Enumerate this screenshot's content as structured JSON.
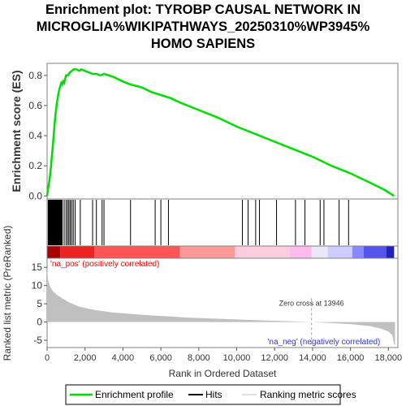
{
  "title_lines": [
    "Enrichment plot: TYROBP CAUSAL NETWORK IN",
    "MICROGLIA%WIKIPATHWAYS_20250310%WP3945%",
    "HOMO SAPIENS"
  ],
  "colors": {
    "es_line": "#00dd00",
    "hits": "#000000",
    "metric_fill": "#c0c0c0",
    "frame": "#808080",
    "pos_label": "#ff0000",
    "neg_label": "#3333cc",
    "zero_cross_line": "#a0a0a0"
  },
  "chart_data": {
    "type": "line",
    "x_axis": {
      "label": "Rank in Ordered Dataset",
      "range": [
        0,
        18500
      ],
      "ticks": [
        0,
        2000,
        4000,
        6000,
        8000,
        10000,
        12000,
        14000,
        16000,
        18000
      ],
      "tick_labels": [
        "0",
        "2,000",
        "4,000",
        "6,000",
        "8,000",
        "10,000",
        "12,000",
        "14,000",
        "16,000",
        "18,000"
      ]
    },
    "enrichment_panel": {
      "ylabel": "Enrichment score (ES)",
      "ylim": [
        -0.02,
        0.88
      ],
      "yticks": [
        0.0,
        0.2,
        0.4,
        0.6,
        0.8
      ],
      "ytick_labels": [
        "0.0",
        "0.2",
        "0.4",
        "0.6",
        "0.8"
      ],
      "series": [
        {
          "name": "Enrichment profile",
          "points": [
            [
              0,
              0.0
            ],
            [
              40,
              0.04
            ],
            [
              80,
              0.07
            ],
            [
              120,
              0.1
            ],
            [
              160,
              0.14
            ],
            [
              200,
              0.19
            ],
            [
              240,
              0.25
            ],
            [
              280,
              0.3
            ],
            [
              320,
              0.36
            ],
            [
              360,
              0.42
            ],
            [
              400,
              0.48
            ],
            [
              440,
              0.54
            ],
            [
              480,
              0.58
            ],
            [
              520,
              0.62
            ],
            [
              560,
              0.65
            ],
            [
              600,
              0.68
            ],
            [
              650,
              0.71
            ],
            [
              700,
              0.73
            ],
            [
              750,
              0.75
            ],
            [
              800,
              0.74
            ],
            [
              850,
              0.76
            ],
            [
              900,
              0.75
            ],
            [
              1000,
              0.8
            ],
            [
              1100,
              0.8
            ],
            [
              1200,
              0.82
            ],
            [
              1300,
              0.83
            ],
            [
              1400,
              0.84
            ],
            [
              1550,
              0.84
            ],
            [
              1700,
              0.83
            ],
            [
              1800,
              0.84
            ],
            [
              2000,
              0.83
            ],
            [
              2200,
              0.82
            ],
            [
              2400,
              0.81
            ],
            [
              2600,
              0.81
            ],
            [
              2800,
              0.8
            ],
            [
              3000,
              0.81
            ],
            [
              3500,
              0.79
            ],
            [
              4000,
              0.76
            ],
            [
              4400,
              0.74
            ],
            [
              5000,
              0.72
            ],
            [
              5500,
              0.69
            ],
            [
              6000,
              0.67
            ],
            [
              6500,
              0.65
            ],
            [
              7000,
              0.62
            ],
            [
              8000,
              0.57
            ],
            [
              9000,
              0.52
            ],
            [
              10000,
              0.46
            ],
            [
              11000,
              0.41
            ],
            [
              12000,
              0.36
            ],
            [
              13000,
              0.31
            ],
            [
              14000,
              0.26
            ],
            [
              15000,
              0.2
            ],
            [
              16000,
              0.15
            ],
            [
              17000,
              0.09
            ],
            [
              17800,
              0.04
            ],
            [
              18300,
              0.0
            ]
          ]
        }
      ]
    },
    "hits": [
      60,
      90,
      120,
      150,
      170,
      200,
      220,
      250,
      270,
      290,
      310,
      330,
      350,
      370,
      390,
      410,
      430,
      450,
      480,
      500,
      520,
      550,
      580,
      610,
      640,
      670,
      700,
      730,
      760,
      800,
      900,
      1000,
      1080,
      1150,
      1220,
      1300,
      1380,
      1480,
      1750,
      2400,
      2600,
      2900,
      3000,
      4400,
      5700,
      6000,
      6400,
      10300,
      10600,
      11000,
      11200,
      12100,
      13100,
      13600,
      14400,
      14600,
      15400,
      15900
    ],
    "ranking_color_bands": [
      {
        "from": 0,
        "to": 700,
        "color": "#aa0000"
      },
      {
        "from": 700,
        "to": 2500,
        "color": "#ee2222"
      },
      {
        "from": 2500,
        "to": 7000,
        "color": "#ff5555"
      },
      {
        "from": 7000,
        "to": 9900,
        "color": "#ff9999"
      },
      {
        "from": 9900,
        "to": 12800,
        "color": "#ffccdd"
      },
      {
        "from": 12800,
        "to": 13950,
        "color": "#ffbbee"
      },
      {
        "from": 13950,
        "to": 14800,
        "color": "#e8e8f8"
      },
      {
        "from": 14800,
        "to": 16100,
        "color": "#ccccff"
      },
      {
        "from": 16100,
        "to": 16700,
        "color": "#8888ff"
      },
      {
        "from": 16700,
        "to": 17900,
        "color": "#5555ee"
      },
      {
        "from": 17900,
        "to": 18300,
        "color": "#2222bb"
      }
    ],
    "metric_panel": {
      "ylabel": "Ranked list metric (PreRanked)",
      "ylim": [
        -7,
        17.5
      ],
      "yticks": [
        -5,
        0,
        5,
        10,
        15
      ],
      "ytick_labels": [
        "-5",
        "0",
        "5",
        "10",
        "15"
      ],
      "points": [
        [
          0,
          14.5
        ],
        [
          50,
          11.5
        ],
        [
          150,
          9.8
        ],
        [
          300,
          8.5
        ],
        [
          500,
          7.5
        ],
        [
          800,
          6.5
        ],
        [
          1200,
          5.3
        ],
        [
          1700,
          4.2
        ],
        [
          2500,
          3.3
        ],
        [
          3500,
          2.6
        ],
        [
          4500,
          2.2
        ],
        [
          5500,
          1.8
        ],
        [
          6500,
          1.5
        ],
        [
          7500,
          1.2
        ],
        [
          9000,
          0.9
        ],
        [
          10500,
          0.6
        ],
        [
          12000,
          0.35
        ],
        [
          13946,
          0.0
        ],
        [
          15000,
          -0.3
        ],
        [
          16000,
          -0.6
        ],
        [
          17000,
          -1.1
        ],
        [
          17600,
          -1.8
        ],
        [
          18000,
          -2.6
        ],
        [
          18200,
          -3.6
        ],
        [
          18300,
          -6.0
        ],
        [
          18350,
          -6.5
        ]
      ],
      "zero_cross": 13946,
      "zero_cross_label": "Zero cross at 13946",
      "pos_label": "'na_pos' (positively correlated)",
      "neg_label": "'na_neg' (negatively correlated)"
    },
    "legend": {
      "placement": "bottom",
      "entries": [
        {
          "label": "Enrichment profile",
          "color": "#00dd00"
        },
        {
          "label": "Hits",
          "color": "#000000"
        },
        {
          "label": "Ranking metric scores",
          "color": "#c0c0c0"
        }
      ]
    }
  }
}
